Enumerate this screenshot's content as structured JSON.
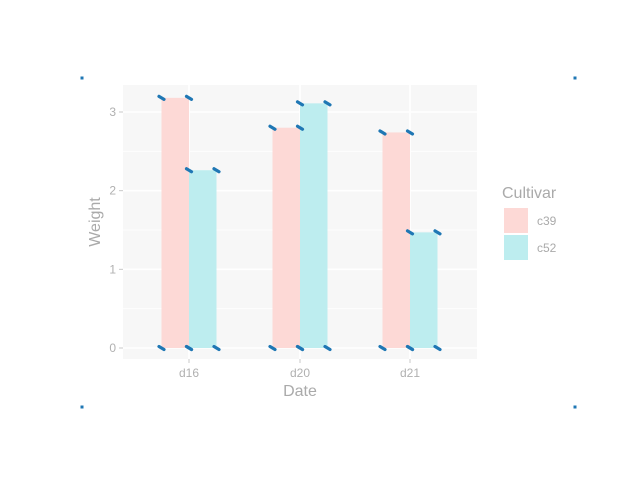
{
  "chart_data": {
    "type": "bar",
    "categories": [
      "d16",
      "d20",
      "d21"
    ],
    "series": [
      {
        "name": "c39",
        "values": [
          3.18,
          2.8,
          2.74
        ],
        "color": "#fdd9d6"
      },
      {
        "name": "c52",
        "values": [
          2.26,
          3.11,
          1.47
        ],
        "color": "#bdedef"
      }
    ],
    "xlabel": "Date",
    "ylabel": "Weight",
    "ylim": [
      0,
      3.3
    ],
    "yticks": [
      0,
      1,
      2,
      3
    ],
    "grid": true,
    "legend": {
      "title": "Cultivar",
      "position": "right"
    },
    "colors": {
      "panel": "#f7f7f7",
      "grid": "#ffffff",
      "marker": "#1f77b4",
      "corner": "#1f77b4"
    }
  }
}
